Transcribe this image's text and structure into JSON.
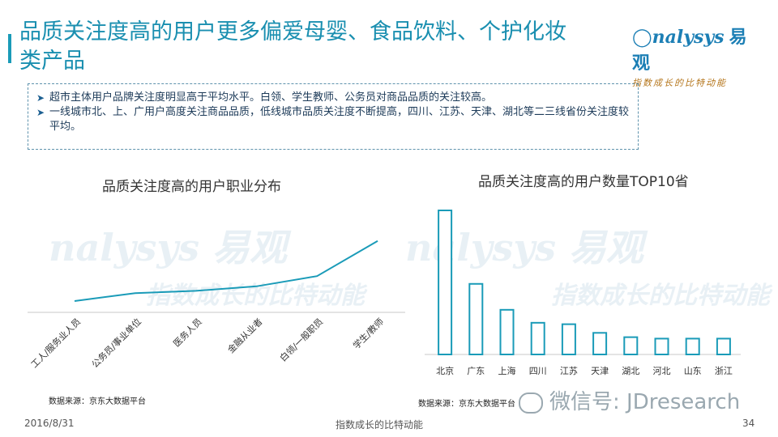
{
  "title": "品质关注度高的用户更多偏爱母婴、食品饮料、个护化妆类产品",
  "logo": {
    "main": "nalysys",
    "cn": "易观",
    "tagline": "指数成长的比特动能"
  },
  "summary": [
    "超市主体用户品牌关注度明显高于平均水平。白领、学生教师、公务员对商品品质的关注较高。",
    "一线城市北、上、广用户高度关注商品品质，低线城市品质关注度不断提高，四川、江苏、天津、湖北等二三线省份关注度较平均。"
  ],
  "chart_data": [
    {
      "type": "line",
      "title": "品质关注度高的用户职业分布",
      "categories": [
        "工人/服务业人员",
        "公务员/事业单位",
        "医务人员",
        "金融从业者",
        "白领/一般职员",
        "学生/教师"
      ],
      "values": [
        1.0,
        1.7,
        1.9,
        2.3,
        3.2,
        6.3
      ],
      "ylim": [
        0,
        9
      ],
      "grid": false,
      "source": "数据来源：京东大数据平台",
      "color": "#1a9bb8"
    },
    {
      "type": "bar",
      "title": "品质关注度高的用户数量TOP10省",
      "categories": [
        "北京",
        "广东",
        "上海",
        "四川",
        "江苏",
        "天津",
        "湖北",
        "河北",
        "山东",
        "浙江"
      ],
      "values": [
        100,
        49,
        31,
        22,
        21,
        15,
        12,
        11,
        11,
        11
      ],
      "ylim": [
        0,
        100
      ],
      "grid": false,
      "source": "数据来源：京东大数据平台",
      "color": "#1a9bb8"
    }
  ],
  "watermarks": [
    "nalysys 易观",
    "指数成长的比特动能"
  ],
  "wechat_text": "微信号: JDresearch",
  "footer": {
    "date": "2016/8/31",
    "tagline": "指数成长的比特动能",
    "page": "34"
  }
}
